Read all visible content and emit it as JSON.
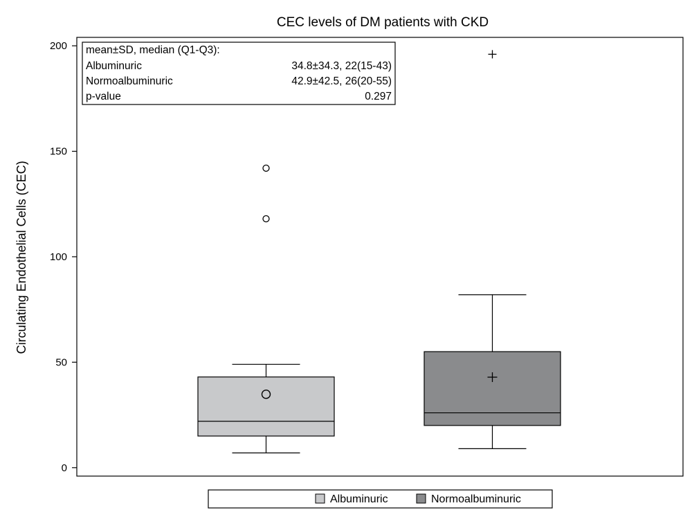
{
  "chart_data": {
    "type": "boxplot",
    "title": "CEC levels of DM patients with CKD",
    "xlabel": "",
    "ylabel": "Circulating Endothelial Cells (CEC)",
    "ylim": [
      -4,
      204
    ],
    "yticks": [
      0,
      50,
      100,
      150,
      200
    ],
    "grid": false,
    "legend_position": "bottom-center",
    "series": [
      {
        "name": "Albuminuric",
        "color": "#c8c9cb",
        "whisker_low": 7,
        "q1": 15,
        "median": 22,
        "q3": 43,
        "whisker_high": 49,
        "mean": 34.8,
        "mean_marker": "circle",
        "outliers": [
          118,
          142
        ],
        "outlier_marker": "circle"
      },
      {
        "name": "Normoalbuminuric",
        "color": "#8a8b8d",
        "whisker_low": 9,
        "q1": 20,
        "median": 26,
        "q3": 55,
        "whisker_high": 82,
        "mean": 42.9,
        "mean_marker": "plus",
        "outliers": [
          196
        ],
        "outlier_marker": "plus"
      }
    ],
    "stats_table": {
      "header": "mean±SD, median (Q1-Q3):",
      "rows": [
        {
          "label": "Albuminuric",
          "value": "34.8±34.3, 22(15-43)"
        },
        {
          "label": "Normoalbuminuric",
          "value": "42.9±42.5, 26(20-55)"
        },
        {
          "label": "p-value",
          "value": "0.297"
        }
      ]
    }
  }
}
